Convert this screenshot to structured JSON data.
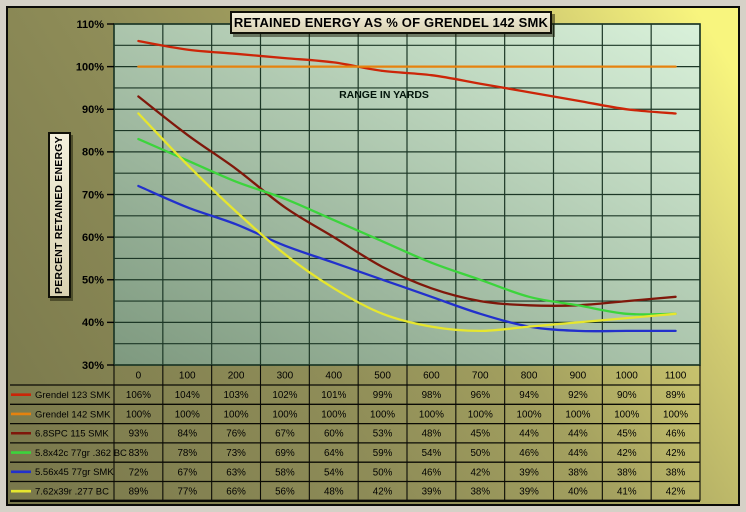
{
  "chart_data": {
    "type": "line",
    "title": "RETAINED ENERGY AS % OF GRENDEL 142 SMK",
    "xlabel": "RANGE IN YARDS",
    "ylabel": "PERCENT RETAINED ENERGY",
    "x": [
      0,
      100,
      200,
      300,
      400,
      500,
      600,
      700,
      800,
      900,
      1000,
      1100
    ],
    "ylim": [
      30,
      110
    ],
    "ytick_step": 10,
    "grid_step": 5,
    "ytick_suffix": "%",
    "value_suffix": "%",
    "grid": true,
    "legend_position": "table-left",
    "series": [
      {
        "name": "Grendel 123 SMK",
        "color": "#cc2508",
        "values": [
          106,
          104,
          103,
          102,
          101,
          99,
          98,
          96,
          94,
          92,
          90,
          89
        ]
      },
      {
        "name": "Grendel 142 SMK",
        "color": "#e6820e",
        "values": [
          100,
          100,
          100,
          100,
          100,
          100,
          100,
          100,
          100,
          100,
          100,
          100
        ]
      },
      {
        "name": "6.8SPC 115 SMK",
        "color": "#7f170a",
        "values": [
          93,
          84,
          76,
          67,
          60,
          53,
          48,
          45,
          44,
          44,
          45,
          46
        ]
      },
      {
        "name": "5.8x42c 77gr .362 BC",
        "color": "#3cd43c",
        "values": [
          83,
          78,
          73,
          69,
          64,
          59,
          54,
          50,
          46,
          44,
          42,
          42
        ]
      },
      {
        "name": "5.56x45 77gr SMK",
        "color": "#2230cc",
        "values": [
          72,
          67,
          63,
          58,
          54,
          50,
          46,
          42,
          39,
          38,
          38,
          38
        ]
      },
      {
        "name": "7.62x39r .277 BC",
        "color": "#e6e62e",
        "values": [
          89,
          77,
          66,
          56,
          48,
          42,
          39,
          38,
          39,
          40,
          41,
          42
        ]
      }
    ]
  },
  "theme": {
    "page_gradient": [
      "#78774b",
      "#8f8d58",
      "#f8f57e"
    ],
    "plot_gradient": [
      "#7e997f",
      "#d9f1da"
    ],
    "grid_color": "#1c3726",
    "table_line_color": "#0a0a05",
    "text_color": "#000000",
    "box_bg": "#ece7cf",
    "frame_color": "#d5d1c7"
  }
}
